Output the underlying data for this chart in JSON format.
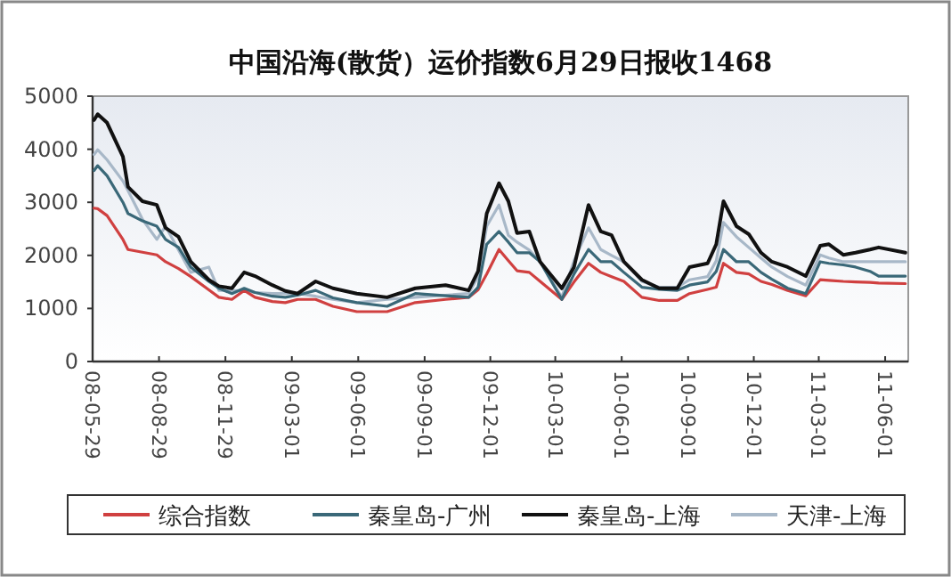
{
  "chart_data": {
    "type": "line",
    "title": "中国沿海(散货）运价指数6月29日报收1468",
    "x": [
      "2008-05-31",
      "2008-06-05",
      "2008-06-18",
      "2008-07-10",
      "2008-07-17",
      "2008-08-06",
      "2008-08-26",
      "2008-09-07",
      "2008-09-25",
      "2008-10-12",
      "2008-11-06",
      "2008-11-20",
      "2008-12-08",
      "2008-12-25",
      "2009-01-09",
      "2009-02-02",
      "2009-02-20",
      "2009-03-09",
      "2009-04-03",
      "2009-04-27",
      "2009-05-30",
      "2009-07-11",
      "2009-08-19",
      "2009-09-30",
      "2009-11-01",
      "2009-11-14",
      "2009-11-26",
      "2009-12-13",
      "2009-12-26",
      "2010-01-07",
      "2010-01-24",
      "2010-02-08",
      "2010-03-10",
      "2010-03-27",
      "2010-04-16",
      "2010-05-03",
      "2010-05-18",
      "2010-06-04",
      "2010-06-29",
      "2010-07-23",
      "2010-08-17",
      "2010-09-03",
      "2010-09-28",
      "2010-10-10",
      "2010-10-20",
      "2010-11-07",
      "2010-11-24",
      "2010-12-11",
      "2010-12-26",
      "2011-01-17",
      "2011-02-11",
      "2011-03-03",
      "2011-03-15",
      "2011-04-04",
      "2011-04-21",
      "2011-05-11",
      "2011-05-23",
      "2011-06-29"
    ],
    "series": [
      {
        "name": "综合指数",
        "color": "#d04040",
        "values": [
          2890,
          2880,
          2750,
          2300,
          2110,
          2060,
          2010,
          1880,
          1750,
          1600,
          1350,
          1210,
          1170,
          1340,
          1210,
          1130,
          1110,
          1170,
          1170,
          1040,
          940,
          940,
          1110,
          1170,
          1210,
          1350,
          1650,
          2110,
          1900,
          1710,
          1680,
          1510,
          1170,
          1500,
          1850,
          1680,
          1600,
          1510,
          1210,
          1150,
          1150,
          1280,
          1360,
          1400,
          1850,
          1680,
          1650,
          1510,
          1450,
          1340,
          1240,
          1540,
          1530,
          1510,
          1500,
          1490,
          1480,
          1468
        ]
      },
      {
        "name": "秦皇岛-广州",
        "color": "#3a6878",
        "values": [
          3600,
          3690,
          3500,
          3000,
          2790,
          2650,
          2550,
          2300,
          2150,
          1780,
          1510,
          1380,
          1280,
          1380,
          1300,
          1230,
          1210,
          1250,
          1340,
          1200,
          1110,
          1040,
          1280,
          1240,
          1210,
          1400,
          2210,
          2450,
          2250,
          2050,
          2050,
          1880,
          1170,
          1650,
          2110,
          1880,
          1880,
          1680,
          1400,
          1360,
          1340,
          1440,
          1500,
          1700,
          2110,
          1880,
          1880,
          1680,
          1550,
          1380,
          1280,
          1880,
          1850,
          1820,
          1780,
          1700,
          1610,
          1610
        ]
      },
      {
        "name": "秦皇岛-上海",
        "color": "#111111",
        "values": [
          4550,
          4660,
          4500,
          3860,
          3290,
          3020,
          2950,
          2520,
          2350,
          1880,
          1540,
          1420,
          1380,
          1680,
          1610,
          1440,
          1330,
          1280,
          1510,
          1380,
          1280,
          1210,
          1380,
          1440,
          1340,
          1700,
          2790,
          3360,
          3020,
          2420,
          2450,
          1880,
          1380,
          1780,
          2950,
          2450,
          2380,
          1880,
          1540,
          1380,
          1380,
          1780,
          1850,
          2210,
          3020,
          2550,
          2400,
          2050,
          1880,
          1780,
          1610,
          2180,
          2210,
          2010,
          2050,
          2110,
          2150,
          2050
        ]
      },
      {
        "name": "天津-上海",
        "color": "#a8b8c8",
        "values": [
          3900,
          3990,
          3800,
          3400,
          3220,
          2680,
          2300,
          2550,
          2100,
          1680,
          1780,
          1340,
          1340,
          1330,
          1300,
          1280,
          1280,
          1280,
          1230,
          1170,
          1110,
          1170,
          1210,
          1250,
          1280,
          1600,
          2550,
          2950,
          2380,
          2250,
          2100,
          1880,
          1210,
          1900,
          2520,
          2110,
          2000,
          1880,
          1510,
          1400,
          1400,
          1540,
          1600,
          1900,
          2620,
          2350,
          2150,
          1950,
          1780,
          1600,
          1440,
          2010,
          1950,
          1880,
          1880,
          1880,
          1880,
          1880
        ]
      }
    ],
    "xlim": [
      "2008-05-29",
      "2011-07-03"
    ],
    "xticks": [
      {
        "value": "2008-05-29",
        "label": "08-05-29"
      },
      {
        "value": "2008-08-29",
        "label": "08-08-29"
      },
      {
        "value": "2008-11-29",
        "label": "08-11-29"
      },
      {
        "value": "2009-03-01",
        "label": "09-03-01"
      },
      {
        "value": "2009-06-01",
        "label": "09-06-01"
      },
      {
        "value": "2009-09-01",
        "label": "09-09-01"
      },
      {
        "value": "2009-12-01",
        "label": "09-12-01"
      },
      {
        "value": "2010-03-01",
        "label": "10-03-01"
      },
      {
        "value": "2010-06-01",
        "label": "10-06-01"
      },
      {
        "value": "2010-09-01",
        "label": "10-09-01"
      },
      {
        "value": "2010-12-01",
        "label": "10-12-01"
      },
      {
        "value": "2011-03-01",
        "label": "11-03-01"
      },
      {
        "value": "2011-06-01",
        "label": "11-06-01"
      }
    ],
    "ylim": [
      0,
      5000
    ],
    "yticks": [
      0,
      1000,
      2000,
      3000,
      4000,
      5000
    ],
    "grid": false,
    "legend": "bottom",
    "marker": "none",
    "line_style": "solid"
  }
}
